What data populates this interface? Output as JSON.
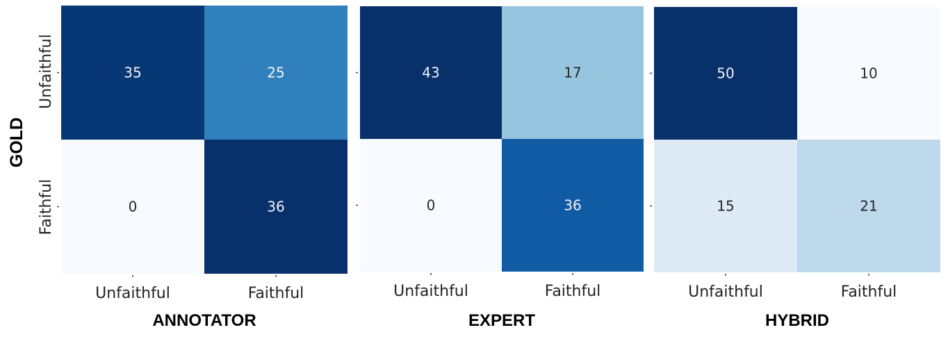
{
  "figure": {
    "ylabel": "GOLD",
    "y_categories": [
      "Unfaithful",
      "Faithful"
    ],
    "x_categories": [
      "Unfaithful",
      "Faithful"
    ]
  },
  "chart_data": [
    {
      "type": "heatmap",
      "xlabel": "ANNOTATOR",
      "ylabel": "GOLD",
      "rows": [
        "Unfaithful",
        "Faithful"
      ],
      "columns": [
        "Unfaithful",
        "Faithful"
      ],
      "values": [
        [
          35,
          25
        ],
        [
          0,
          36
        ]
      ],
      "colormap": "Blues",
      "vmin": 0,
      "vmax": 36
    },
    {
      "type": "heatmap",
      "xlabel": "EXPERT",
      "ylabel": "",
      "rows": [
        "Unfaithful",
        "Faithful"
      ],
      "columns": [
        "Unfaithful",
        "Faithful"
      ],
      "values": [
        [
          43,
          17
        ],
        [
          0,
          36
        ]
      ],
      "colormap": "Blues",
      "vmin": 0,
      "vmax": 43
    },
    {
      "type": "heatmap",
      "xlabel": "HYBRID",
      "ylabel": "",
      "rows": [
        "Unfaithful",
        "Faithful"
      ],
      "columns": [
        "Unfaithful",
        "Faithful"
      ],
      "values": [
        [
          50,
          10
        ],
        [
          15,
          21
        ]
      ],
      "colormap": "Blues",
      "vmin": 10,
      "vmax": 50
    }
  ]
}
